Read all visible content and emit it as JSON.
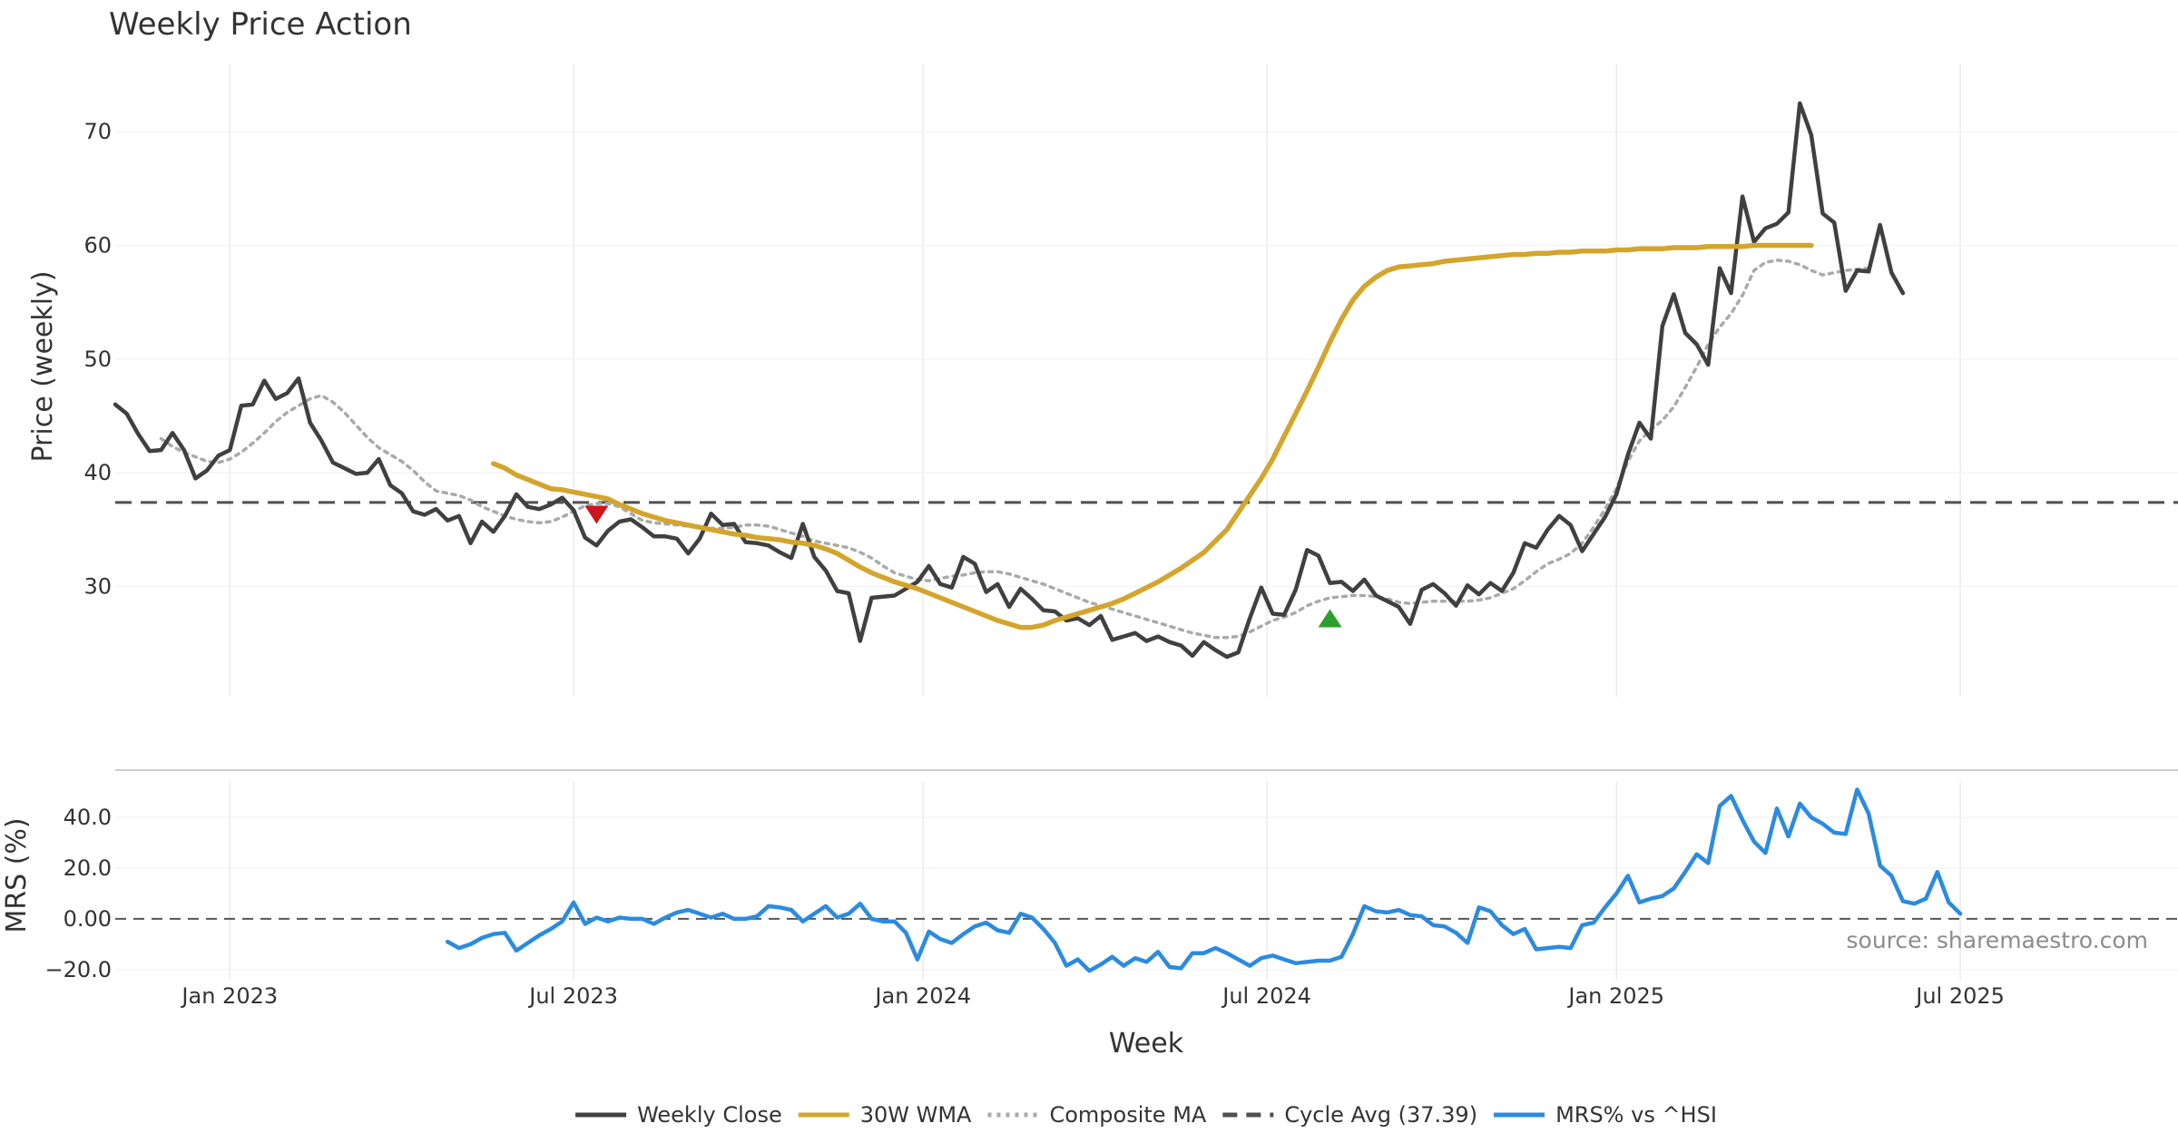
{
  "chart_data": {
    "type": "line",
    "title": "Weekly Price Action",
    "source_note": "source: sharemaestro.com",
    "xlabel": "Week",
    "x_ticks": [
      "Jan 2023",
      "Jul 2023",
      "Jan 2024",
      "Jul 2024",
      "Jan 2025",
      "Jul 2025"
    ],
    "x_tick_index": [
      10,
      40,
      70.5,
      100.5,
      131,
      161
    ],
    "x_range": [
      0,
      180
    ],
    "price_panel": {
      "ylabel": "Price (weekly)",
      "ylim": [
        20.3,
        76
      ],
      "yticks": [
        "30",
        "40",
        "50",
        "60",
        "70"
      ],
      "ytick_values": [
        30,
        40,
        50,
        60,
        70
      ],
      "cycle_avg": 37.39,
      "series": [
        {
          "name": "Weekly Close",
          "color": "#404040",
          "start": 0,
          "values": [
            46.0,
            45.2,
            43.4,
            41.9,
            42.0,
            43.5,
            42.0,
            39.5,
            40.2,
            41.5,
            42.0,
            45.9,
            46.0,
            48.1,
            46.5,
            47.0,
            48.3,
            44.4,
            42.8,
            40.9,
            40.4,
            39.9,
            40.0,
            41.2,
            38.9,
            38.2,
            36.6,
            36.3,
            36.8,
            35.8,
            36.2,
            33.8,
            35.7,
            34.8,
            36.2,
            38.1,
            37.0,
            36.8,
            37.2,
            37.8,
            36.7,
            34.3,
            33.6,
            34.9,
            35.7,
            35.9,
            35.2,
            34.4,
            34.4,
            34.2,
            32.9,
            34.2,
            36.4,
            35.4,
            35.5,
            33.9,
            33.8,
            33.6,
            33.0,
            32.5,
            35.5,
            32.6,
            31.4,
            29.6,
            29.4,
            25.2,
            29.0,
            29.1,
            29.2,
            29.8,
            30.4,
            31.8,
            30.2,
            29.9,
            32.6,
            32.0,
            29.5,
            30.2,
            28.2,
            29.8,
            28.9,
            27.9,
            27.8,
            27.0,
            27.2,
            26.6,
            27.4,
            25.3,
            25.6,
            25.9,
            25.2,
            25.6,
            25.1,
            24.8,
            23.9,
            25.1,
            24.4,
            23.8,
            24.2,
            27.2,
            29.9,
            27.6,
            27.5,
            29.7,
            33.2,
            32.7,
            30.3,
            30.4,
            29.6,
            30.6,
            29.2,
            28.7,
            28.2,
            26.7,
            29.7,
            30.2,
            29.4,
            28.3,
            30.1,
            29.3,
            30.3,
            29.6,
            31.2,
            33.8,
            33.4,
            35.0,
            36.2,
            35.4,
            33.1,
            34.6,
            36.1,
            38.1,
            41.6,
            44.4,
            43.0,
            52.9,
            55.7,
            52.3,
            51.3,
            49.5,
            58.0,
            55.8,
            64.3,
            60.3,
            61.5,
            61.9,
            62.9,
            72.5,
            69.7,
            62.8,
            62.0,
            56.0,
            57.8,
            57.7,
            61.8,
            57.6,
            55.8
          ]
        },
        {
          "name": "30W WMA",
          "color": "#d4a52c",
          "start": 33,
          "values": [
            40.8,
            40.4,
            39.8,
            39.4,
            39.0,
            38.6,
            38.5,
            38.3,
            38.1,
            37.9,
            37.7,
            37.2,
            36.8,
            36.4,
            36.1,
            35.8,
            35.6,
            35.4,
            35.2,
            35.0,
            34.8,
            34.6,
            34.5,
            34.3,
            34.2,
            34.1,
            33.9,
            33.8,
            33.6,
            33.3,
            32.9,
            32.3,
            31.7,
            31.2,
            30.8,
            30.4,
            30.1,
            29.8,
            29.4,
            29.0,
            28.6,
            28.2,
            27.8,
            27.4,
            27.0,
            26.7,
            26.4,
            26.4,
            26.6,
            27.0,
            27.3,
            27.6,
            27.9,
            28.2,
            28.5,
            28.9,
            29.4,
            29.9,
            30.4,
            31.0,
            31.6,
            32.3,
            33.0,
            34.0,
            35.0,
            36.5,
            38.0,
            39.5,
            41.2,
            43.2,
            45.2,
            47.2,
            49.3,
            51.5,
            53.5,
            55.2,
            56.4,
            57.2,
            57.8,
            58.1,
            58.2,
            58.3,
            58.4,
            58.6,
            58.7,
            58.8,
            58.9,
            59.0,
            59.1,
            59.2,
            59.2,
            59.3,
            59.3,
            59.4,
            59.4,
            59.5,
            59.5,
            59.5,
            59.6,
            59.6,
            59.7,
            59.7,
            59.7,
            59.8,
            59.8,
            59.8,
            59.9,
            59.9,
            59.9,
            59.9,
            60.0,
            60.0,
            60.0,
            60.0,
            60.0,
            60.0
          ]
        },
        {
          "name": "Composite MA",
          "color": "#aaaaaa",
          "start": 4,
          "values": [
            43.0,
            42.3,
            41.8,
            41.4,
            41.0,
            40.9,
            41.2,
            41.8,
            42.6,
            43.5,
            44.5,
            45.3,
            45.9,
            46.5,
            46.8,
            46.2,
            45.3,
            44.2,
            43.1,
            42.2,
            41.6,
            41.0,
            40.2,
            39.2,
            38.4,
            38.2,
            38.0,
            37.6,
            37.0,
            36.6,
            36.2,
            35.9,
            35.7,
            35.6,
            35.7,
            36.1,
            36.6,
            37.1,
            37.3,
            37.3,
            37.0,
            36.4,
            35.8,
            35.6,
            35.5,
            35.4,
            35.3,
            35.2,
            35.1,
            35.1,
            35.2,
            35.4,
            35.4,
            35.3,
            35.0,
            34.7,
            34.4,
            34.0,
            33.8,
            33.6,
            33.4,
            33.0,
            32.5,
            31.8,
            31.2,
            30.9,
            30.6,
            30.5,
            30.7,
            30.9,
            31.0,
            31.2,
            31.3,
            31.3,
            31.1,
            30.8,
            30.5,
            30.2,
            29.8,
            29.4,
            29.0,
            28.6,
            28.3,
            28.0,
            27.7,
            27.4,
            27.1,
            26.8,
            26.5,
            26.2,
            25.9,
            25.7,
            25.5,
            25.5,
            25.6,
            26.0,
            26.5,
            27.0,
            27.3,
            27.7,
            28.3,
            28.7,
            29.0,
            29.1,
            29.2,
            29.2,
            29.1,
            28.9,
            28.6,
            28.5,
            28.6,
            28.7,
            28.7,
            28.7,
            28.7,
            28.8,
            29.0,
            29.4,
            29.8,
            30.5,
            31.3,
            32.0,
            32.4,
            32.9,
            33.8,
            35.2,
            36.8,
            38.6,
            41.0,
            42.8,
            43.8,
            44.6,
            45.8,
            47.5,
            49.3,
            51.3,
            52.8,
            54.0,
            55.6,
            57.8,
            58.5,
            58.7,
            58.6,
            58.3,
            57.8,
            57.4,
            57.6,
            57.8,
            57.9,
            58.0
          ]
        }
      ],
      "signals": [
        {
          "type": "sell",
          "index": 42,
          "value": 36.3,
          "color": "#d0141c"
        },
        {
          "type": "buy",
          "index": 106,
          "value": 27.2,
          "color": "#2ca02c"
        }
      ]
    },
    "mrs_panel": {
      "ylabel": "MRS (%)",
      "ylim": [
        -24,
        54
      ],
      "yticks": [
        "40.0",
        "20.0",
        "0.00",
        "−20.0"
      ],
      "ytick_values": [
        40,
        20,
        0,
        -20
      ],
      "series": [
        {
          "name": "MRS% vs ^HSI",
          "color": "#2b8be0",
          "start": 29,
          "values": [
            -9.0,
            -11.5,
            -10.0,
            -7.5,
            -6.0,
            -5.5,
            -12.5,
            -9.5,
            -6.5,
            -4.0,
            -1.0,
            6.5,
            -2.0,
            0.5,
            -1.0,
            0.5,
            0.0,
            0.0,
            -2.0,
            0.5,
            2.5,
            3.5,
            2.0,
            0.5,
            2.0,
            0.0,
            0.0,
            1.0,
            5.0,
            4.5,
            3.5,
            -1.0,
            2.0,
            5.0,
            0.5,
            2.0,
            6.0,
            0.0,
            -1.0,
            -1.0,
            -5.5,
            -16.0,
            -5.0,
            -8.0,
            -9.5,
            -6.0,
            -3.0,
            -1.5,
            -4.5,
            -5.5,
            2.0,
            0.5,
            -4.0,
            -9.5,
            -18.5,
            -16.0,
            -20.5,
            -18.0,
            -15.0,
            -18.5,
            -15.5,
            -17.0,
            -13.0,
            -19.0,
            -19.5,
            -13.5,
            -13.5,
            -11.5,
            -13.5,
            -16.0,
            -18.5,
            -15.5,
            -14.5,
            -16.0,
            -17.5,
            -17.0,
            -16.5,
            -16.5,
            -15.0,
            -6.0,
            5.0,
            3.0,
            2.5,
            3.5,
            1.5,
            1.0,
            -2.5,
            -3.0,
            -5.5,
            -9.5,
            4.5,
            3.0,
            -2.5,
            -6.0,
            -4.0,
            -12.0,
            -11.5,
            -11.0,
            -11.5,
            -2.5,
            -1.5,
            4.5,
            10.0,
            17.0,
            6.5,
            8.0,
            9.0,
            12.0,
            18.5,
            25.5,
            22.0,
            44.5,
            48.5,
            39.0,
            30.5,
            26.0,
            43.5,
            32.5,
            45.5,
            40.0,
            37.5,
            34.0,
            33.5,
            51.0,
            41.5,
            21.0,
            17.0,
            7.0,
            6.0,
            8.0,
            18.5,
            6.5,
            2.0
          ]
        }
      ]
    },
    "legend": [
      {
        "label": "Weekly Close",
        "style": "solid",
        "color": "#404040"
      },
      {
        "label": "30W WMA",
        "style": "solid",
        "color": "#d4a52c"
      },
      {
        "label": "Composite MA",
        "style": "dotted",
        "color": "#aaaaaa"
      },
      {
        "label": "Cycle Avg (37.39)",
        "style": "dashed",
        "color": "#505050"
      },
      {
        "label": "MRS% vs ^HSI",
        "style": "solid",
        "color": "#2b8be0"
      }
    ],
    "legend_position": "bottom-center"
  }
}
